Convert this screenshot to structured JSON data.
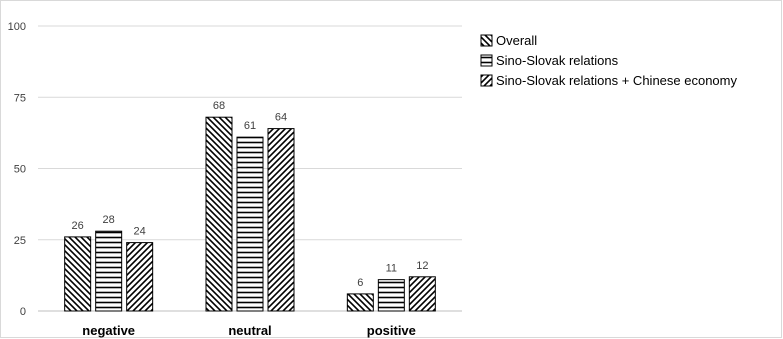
{
  "chart_data": {
    "type": "bar",
    "categories": [
      "negative",
      "neutral",
      "positive"
    ],
    "series": [
      {
        "name": "Overall",
        "values": [
          26,
          68,
          6
        ],
        "pattern": "diag-back"
      },
      {
        "name": "Sino-Slovak relations",
        "values": [
          28,
          61,
          11
        ],
        "pattern": "horizontal"
      },
      {
        "name": "Sino-Slovak relations + Chinese economy",
        "values": [
          24,
          64,
          12
        ],
        "pattern": "diag-fwd"
      }
    ],
    "yticks": [
      "0",
      "25",
      "50",
      "75",
      "100"
    ],
    "ylim": [
      0,
      100
    ],
    "grid": true,
    "legend_position": "right",
    "colors": {
      "bar_stroke": "#000000",
      "grid": "#d9d9d9",
      "axis": "#bfbfbf"
    }
  }
}
